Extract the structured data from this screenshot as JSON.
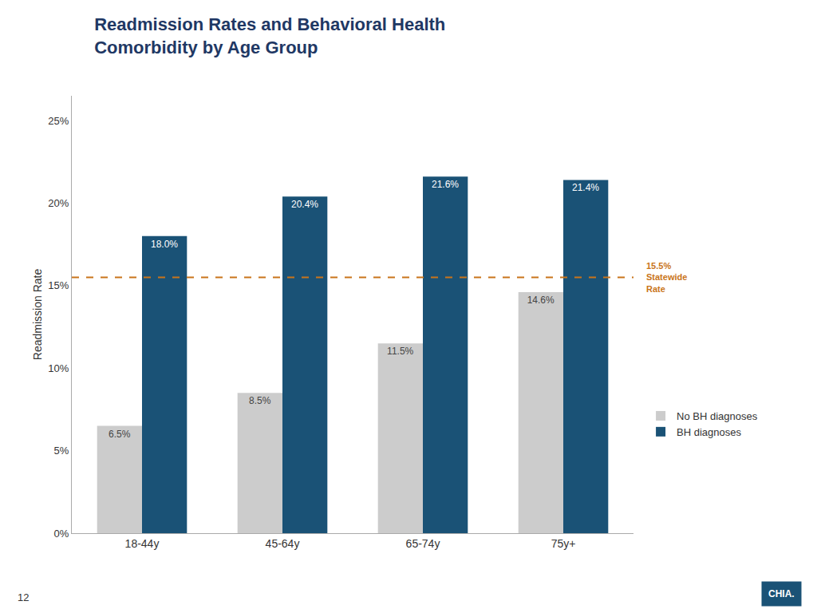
{
  "chart_data": {
    "type": "bar",
    "title": "Readmission Rates and Behavioral Health\nComorbidity by Age Group",
    "ylabel": "Readmission Rate",
    "categories": [
      "18-44y",
      "45-64y",
      "65-74y",
      "75y+"
    ],
    "series": [
      {
        "name": "No BH diagnoses",
        "color": "#CCCCCC",
        "values": [
          6.5,
          8.5,
          11.5,
          14.6
        ],
        "value_labels": [
          "6.5%",
          "8.5%",
          "11.5%",
          "14.6%"
        ]
      },
      {
        "name": "BH diagnoses",
        "color": "#1A5276",
        "values": [
          18.0,
          20.4,
          21.6,
          21.4
        ],
        "value_labels": [
          "18.0%",
          "20.4%",
          "21.6%",
          "21.4%"
        ]
      }
    ],
    "ylim": [
      0,
      26.5
    ],
    "yticks": [
      {
        "value": 0,
        "label": "0%"
      },
      {
        "value": 5,
        "label": "5%"
      },
      {
        "value": 10,
        "label": "10%"
      },
      {
        "value": 15,
        "label": "15%"
      },
      {
        "value": 20,
        "label": "20%"
      },
      {
        "value": 25,
        "label": "25%"
      }
    ],
    "grid": false,
    "legend": "right",
    "data_labels": true,
    "reference_line": {
      "value": 15.5,
      "label": "15.5%\nStatewide\nRate",
      "color": "#C9741A"
    },
    "annotations": [
      "12",
      "CHIA."
    ]
  }
}
